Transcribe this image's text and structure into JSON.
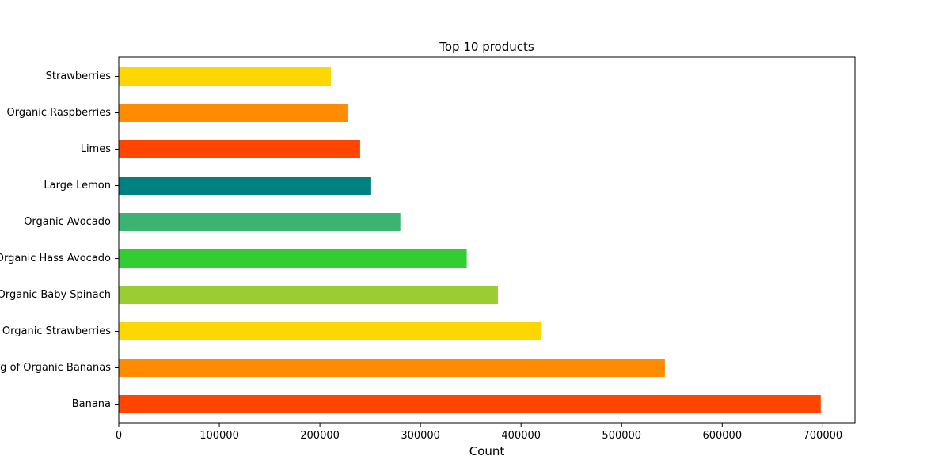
{
  "chart_data": {
    "type": "bar",
    "orientation": "horizontal",
    "title": "Top 10 products",
    "xlabel": "Count",
    "ylabel": "",
    "xlim": [
      0,
      732000
    ],
    "xticks": [
      0,
      100000,
      200000,
      300000,
      400000,
      500000,
      600000,
      700000
    ],
    "grid": false,
    "categories": [
      "Banana",
      "Bag of Organic Bananas",
      "Organic Strawberries",
      "Organic Baby Spinach",
      "Organic Hass Avocado",
      "Organic Avocado",
      "Large Lemon",
      "Limes",
      "Organic Raspberries",
      "Strawberries"
    ],
    "values": [
      698000,
      543000,
      420000,
      377000,
      346000,
      280000,
      251000,
      240000,
      228000,
      211000
    ],
    "colors": [
      "#ff4500",
      "#ff8c00",
      "#ffd700",
      "#9acd32",
      "#32cd32",
      "#3cb371",
      "#008080",
      "#ff4500",
      "#ff8c00",
      "#ffd700"
    ]
  }
}
